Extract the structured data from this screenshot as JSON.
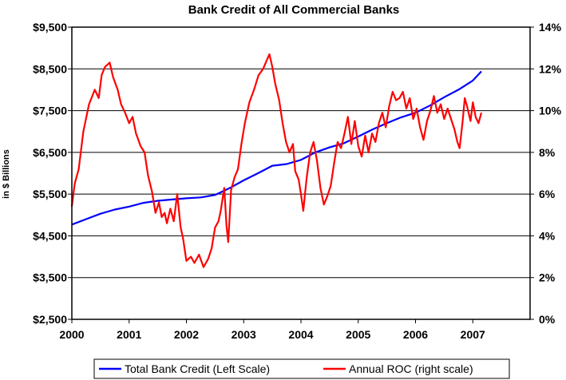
{
  "chart_data": {
    "type": "line",
    "title": "Bank Credit of All Commercial Banks",
    "ylabel": "in $ Billions",
    "y_left": {
      "lim": [
        2500,
        9500
      ],
      "ticks": [
        2500,
        3500,
        4500,
        5500,
        6500,
        7500,
        8500,
        9500
      ],
      "tick_labels": [
        "$2,500",
        "$3,500",
        "$4,500",
        "$5,500",
        "$6,500",
        "$7,500",
        "$8,500",
        "$9,500"
      ]
    },
    "y_right": {
      "lim": [
        0,
        14
      ],
      "ticks": [
        0,
        2,
        4,
        6,
        8,
        10,
        12,
        14
      ],
      "tick_labels": [
        "0%",
        "2%",
        "4%",
        "6%",
        "8%",
        "10%",
        "12%",
        "14%"
      ]
    },
    "x": {
      "lim": [
        2000,
        2008
      ],
      "ticks": [
        2000,
        2001,
        2002,
        2003,
        2004,
        2005,
        2006,
        2007
      ],
      "tick_labels": [
        "2000",
        "2001",
        "2002",
        "2003",
        "2004",
        "2005",
        "2006",
        "2007"
      ]
    },
    "grid": "horizontal",
    "legend_position": "bottom",
    "series": [
      {
        "name": "Total Bank Credit (Left Scale)",
        "axis": "left",
        "color": "#0000ff",
        "points": [
          [
            2000.0,
            4770
          ],
          [
            2000.25,
            4900
          ],
          [
            2000.5,
            5030
          ],
          [
            2000.75,
            5130
          ],
          [
            2001.0,
            5200
          ],
          [
            2001.25,
            5290
          ],
          [
            2001.5,
            5340
          ],
          [
            2001.75,
            5370
          ],
          [
            2002.0,
            5400
          ],
          [
            2002.25,
            5420
          ],
          [
            2002.5,
            5480
          ],
          [
            2002.75,
            5640
          ],
          [
            2003.0,
            5830
          ],
          [
            2003.25,
            6000
          ],
          [
            2003.5,
            6180
          ],
          [
            2003.75,
            6220
          ],
          [
            2004.0,
            6320
          ],
          [
            2004.25,
            6500
          ],
          [
            2004.5,
            6620
          ],
          [
            2004.75,
            6720
          ],
          [
            2005.0,
            6880
          ],
          [
            2005.25,
            7050
          ],
          [
            2005.5,
            7200
          ],
          [
            2005.75,
            7340
          ],
          [
            2006.0,
            7450
          ],
          [
            2006.25,
            7620
          ],
          [
            2006.5,
            7820
          ],
          [
            2006.75,
            8000
          ],
          [
            2007.0,
            8220
          ],
          [
            2007.15,
            8440
          ]
        ]
      },
      {
        "name": "Annual ROC (right scale)",
        "axis": "right",
        "color": "#ff0000",
        "points": [
          [
            2000.0,
            5.4
          ],
          [
            2000.05,
            6.5
          ],
          [
            2000.12,
            7.2
          ],
          [
            2000.2,
            9.0
          ],
          [
            2000.3,
            10.3
          ],
          [
            2000.4,
            11.0
          ],
          [
            2000.47,
            10.6
          ],
          [
            2000.52,
            11.7
          ],
          [
            2000.58,
            12.1
          ],
          [
            2000.66,
            12.3
          ],
          [
            2000.72,
            11.6
          ],
          [
            2000.8,
            11.0
          ],
          [
            2000.86,
            10.3
          ],
          [
            2000.93,
            9.9
          ],
          [
            2001.0,
            9.4
          ],
          [
            2001.06,
            9.7
          ],
          [
            2001.12,
            8.9
          ],
          [
            2001.2,
            8.3
          ],
          [
            2001.27,
            8.0
          ],
          [
            2001.33,
            6.9
          ],
          [
            2001.4,
            6.1
          ],
          [
            2001.46,
            5.1
          ],
          [
            2001.52,
            5.6
          ],
          [
            2001.57,
            4.9
          ],
          [
            2001.62,
            5.1
          ],
          [
            2001.66,
            4.6
          ],
          [
            2001.72,
            5.3
          ],
          [
            2001.78,
            4.7
          ],
          [
            2001.84,
            6.0
          ],
          [
            2001.9,
            4.4
          ],
          [
            2001.94,
            3.9
          ],
          [
            2002.0,
            2.8
          ],
          [
            2002.08,
            3.0
          ],
          [
            2002.14,
            2.7
          ],
          [
            2002.22,
            3.1
          ],
          [
            2002.3,
            2.5
          ],
          [
            2002.38,
            2.9
          ],
          [
            2002.44,
            3.4
          ],
          [
            2002.5,
            4.4
          ],
          [
            2002.56,
            4.7
          ],
          [
            2002.6,
            5.2
          ],
          [
            2002.66,
            6.3
          ],
          [
            2002.7,
            4.5
          ],
          [
            2002.73,
            3.7
          ],
          [
            2002.78,
            6.2
          ],
          [
            2002.84,
            6.8
          ],
          [
            2002.9,
            7.2
          ],
          [
            2002.96,
            8.4
          ],
          [
            2003.02,
            9.4
          ],
          [
            2003.1,
            10.4
          ],
          [
            2003.18,
            11.0
          ],
          [
            2003.26,
            11.7
          ],
          [
            2003.34,
            12.0
          ],
          [
            2003.4,
            12.4
          ],
          [
            2003.45,
            12.7
          ],
          [
            2003.5,
            12.1
          ],
          [
            2003.55,
            11.3
          ],
          [
            2003.62,
            10.5
          ],
          [
            2003.68,
            9.4
          ],
          [
            2003.74,
            8.5
          ],
          [
            2003.8,
            8.0
          ],
          [
            2003.86,
            8.4
          ],
          [
            2003.9,
            7.1
          ],
          [
            2003.96,
            6.7
          ],
          [
            2004.0,
            6.0
          ],
          [
            2004.04,
            5.2
          ],
          [
            2004.1,
            6.8
          ],
          [
            2004.16,
            8.0
          ],
          [
            2004.22,
            8.5
          ],
          [
            2004.28,
            7.6
          ],
          [
            2004.34,
            6.3
          ],
          [
            2004.4,
            5.5
          ],
          [
            2004.46,
            5.9
          ],
          [
            2004.52,
            6.4
          ],
          [
            2004.58,
            7.5
          ],
          [
            2004.64,
            8.5
          ],
          [
            2004.7,
            8.2
          ],
          [
            2004.76,
            8.9
          ],
          [
            2004.82,
            9.7
          ],
          [
            2004.88,
            8.4
          ],
          [
            2004.94,
            9.5
          ],
          [
            2005.0,
            8.3
          ],
          [
            2005.06,
            7.8
          ],
          [
            2005.12,
            8.8
          ],
          [
            2005.18,
            8.0
          ],
          [
            2005.24,
            8.9
          ],
          [
            2005.3,
            8.5
          ],
          [
            2005.36,
            9.4
          ],
          [
            2005.42,
            9.9
          ],
          [
            2005.48,
            9.2
          ],
          [
            2005.54,
            10.2
          ],
          [
            2005.6,
            10.9
          ],
          [
            2005.66,
            10.5
          ],
          [
            2005.72,
            10.6
          ],
          [
            2005.78,
            10.9
          ],
          [
            2005.84,
            10.1
          ],
          [
            2005.9,
            10.6
          ],
          [
            2005.96,
            9.6
          ],
          [
            2006.02,
            10.1
          ],
          [
            2006.08,
            9.2
          ],
          [
            2006.14,
            8.6
          ],
          [
            2006.2,
            9.5
          ],
          [
            2006.26,
            10.0
          ],
          [
            2006.32,
            10.7
          ],
          [
            2006.38,
            9.9
          ],
          [
            2006.44,
            10.3
          ],
          [
            2006.5,
            9.6
          ],
          [
            2006.56,
            10.1
          ],
          [
            2006.62,
            9.6
          ],
          [
            2006.68,
            9.1
          ],
          [
            2006.73,
            8.5
          ],
          [
            2006.77,
            8.2
          ],
          [
            2006.82,
            9.4
          ],
          [
            2006.86,
            10.6
          ],
          [
            2006.9,
            10.2
          ],
          [
            2006.96,
            9.5
          ],
          [
            2007.0,
            10.4
          ],
          [
            2007.05,
            9.7
          ],
          [
            2007.1,
            9.4
          ],
          [
            2007.15,
            9.9
          ]
        ]
      }
    ]
  }
}
